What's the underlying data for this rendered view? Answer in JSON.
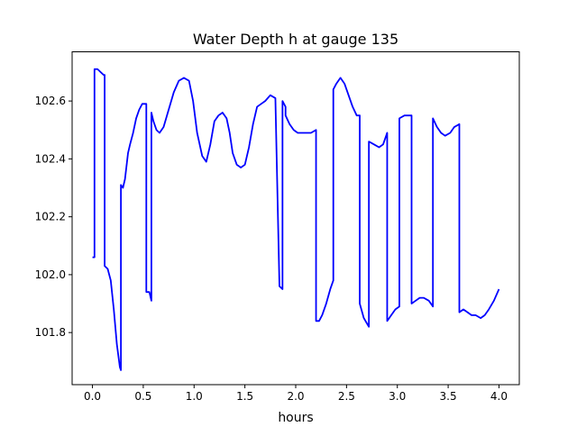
{
  "chart_data": {
    "type": "line",
    "title": "Water Depth h at gauge 135",
    "xlabel": "hours",
    "ylabel": "",
    "xlim": [
      -0.2,
      4.2
    ],
    "ylim": [
      101.62,
      102.77
    ],
    "xticks": [
      0.0,
      0.5,
      1.0,
      1.5,
      2.0,
      2.5,
      3.0,
      3.5,
      4.0
    ],
    "xtick_labels": [
      "0.0",
      "0.5",
      "1.0",
      "1.5",
      "2.0",
      "2.5",
      "3.0",
      "3.5",
      "4.0"
    ],
    "yticks": [
      101.8,
      102.0,
      102.2,
      102.4,
      102.6
    ],
    "ytick_labels": [
      "101.8",
      "102.0",
      "102.2",
      "102.4",
      "102.6"
    ],
    "grid": false,
    "series": [
      {
        "color": "#0000ff",
        "x": [
          0.0,
          0.02,
          0.02,
          0.05,
          0.08,
          0.11,
          0.12,
          0.12,
          0.15,
          0.18,
          0.21,
          0.24,
          0.27,
          0.28,
          0.28,
          0.3,
          0.32,
          0.35,
          0.37,
          0.4,
          0.43,
          0.46,
          0.49,
          0.53,
          0.53,
          0.56,
          0.58,
          0.58,
          0.6,
          0.63,
          0.66,
          0.7,
          0.75,
          0.8,
          0.85,
          0.9,
          0.95,
          0.99,
          1.03,
          1.08,
          1.12,
          1.16,
          1.2,
          1.24,
          1.28,
          1.32,
          1.35,
          1.38,
          1.42,
          1.46,
          1.5,
          1.54,
          1.58,
          1.62,
          1.66,
          1.7,
          1.75,
          1.8,
          1.84,
          1.87,
          1.87,
          1.9,
          1.9,
          1.94,
          1.98,
          2.02,
          2.06,
          2.1,
          2.15,
          2.2,
          2.2,
          2.23,
          2.26,
          2.3,
          2.34,
          2.37,
          2.37,
          2.4,
          2.44,
          2.48,
          2.52,
          2.56,
          2.6,
          2.63,
          2.63,
          2.67,
          2.72,
          2.72,
          2.77,
          2.82,
          2.86,
          2.9,
          2.9,
          2.94,
          2.98,
          3.02,
          3.02,
          3.07,
          3.12,
          3.14,
          3.14,
          3.18,
          3.22,
          3.26,
          3.31,
          3.35,
          3.35,
          3.39,
          3.43,
          3.47,
          3.52,
          3.56,
          3.61,
          3.61,
          3.65,
          3.69,
          3.73,
          3.77,
          3.82,
          3.86,
          3.9,
          3.95,
          4.0
        ],
        "y": [
          102.06,
          102.06,
          102.71,
          102.71,
          102.7,
          102.69,
          102.69,
          102.03,
          102.02,
          101.98,
          101.88,
          101.76,
          101.68,
          101.67,
          102.31,
          102.3,
          102.33,
          102.42,
          102.45,
          102.49,
          102.54,
          102.57,
          102.59,
          102.59,
          101.94,
          101.94,
          101.91,
          102.56,
          102.53,
          102.5,
          102.49,
          102.51,
          102.57,
          102.63,
          102.67,
          102.68,
          102.67,
          102.6,
          102.49,
          102.41,
          102.39,
          102.45,
          102.53,
          102.55,
          102.56,
          102.54,
          102.49,
          102.42,
          102.38,
          102.37,
          102.38,
          102.44,
          102.52,
          102.58,
          102.59,
          102.6,
          102.62,
          102.61,
          101.96,
          101.95,
          102.6,
          102.58,
          102.55,
          102.52,
          102.5,
          102.49,
          102.49,
          102.49,
          102.49,
          102.5,
          101.84,
          101.84,
          101.86,
          101.9,
          101.95,
          101.98,
          102.64,
          102.66,
          102.68,
          102.66,
          102.62,
          102.58,
          102.55,
          102.55,
          101.9,
          101.85,
          101.82,
          102.46,
          102.45,
          102.44,
          102.45,
          102.49,
          101.84,
          101.86,
          101.88,
          101.89,
          102.54,
          102.55,
          102.55,
          102.55,
          101.9,
          101.91,
          101.92,
          101.92,
          101.91,
          101.89,
          102.54,
          102.51,
          102.49,
          102.48,
          102.49,
          102.51,
          102.52,
          101.87,
          101.88,
          101.87,
          101.86,
          101.86,
          101.85,
          101.86,
          101.88,
          101.91,
          101.95
        ]
      }
    ]
  }
}
